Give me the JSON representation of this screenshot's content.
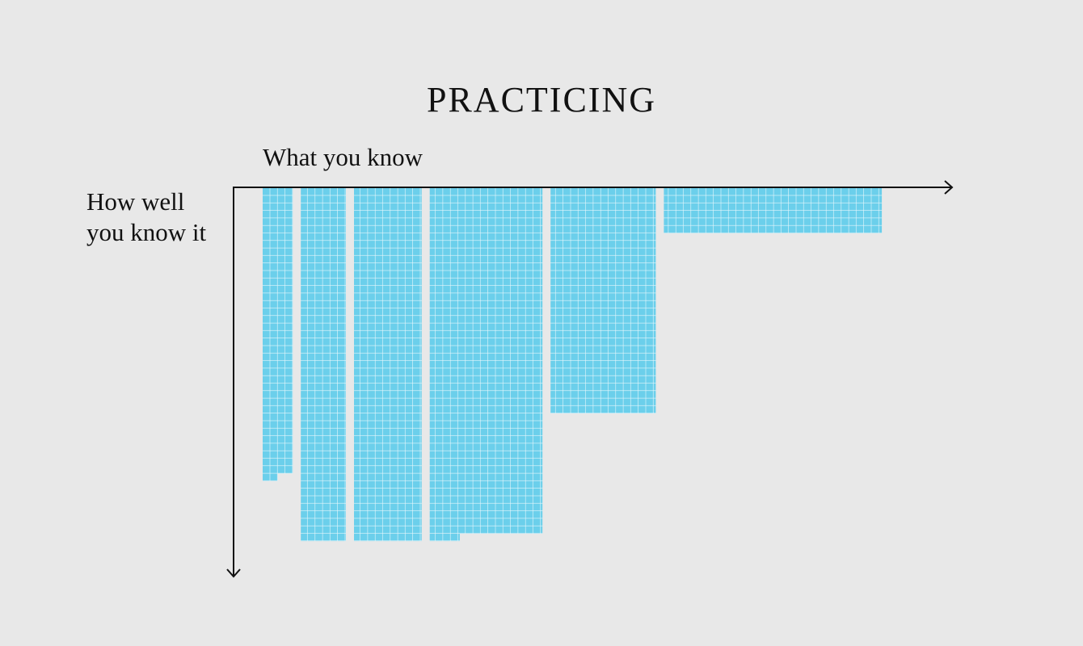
{
  "title": "PRACTICING",
  "x_axis_label": "What you know",
  "y_axis_label": "How well you know it",
  "colors": {
    "background": "#e8e8e8",
    "cell_fill": "#6bcfeb",
    "cell_gap": "#e8f7fc",
    "axis": "#111111"
  },
  "chart_data": {
    "type": "waffle-columns",
    "grid_unit": "cell",
    "blocks": [
      {
        "width": 4,
        "full_depth": 38,
        "remainder_cells": 2
      },
      {
        "width": 6,
        "full_depth": 47,
        "remainder_cells": 0
      },
      {
        "width": 9,
        "full_depth": 47,
        "remainder_cells": 0
      },
      {
        "width": 15,
        "full_depth": 46,
        "remainder_cells": 4
      },
      {
        "width": 14,
        "full_depth": 30,
        "remainder_cells": 0
      },
      {
        "width": 29,
        "full_depth": 6,
        "remainder_cells": 0
      }
    ]
  }
}
